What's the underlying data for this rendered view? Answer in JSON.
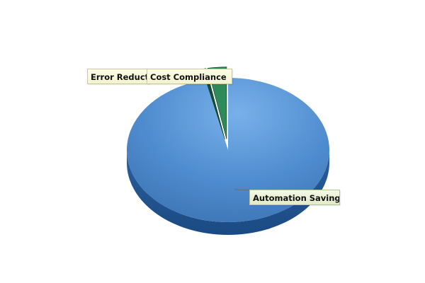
{
  "chart_data": {
    "type": "pie",
    "title": "",
    "style": "3d",
    "slices": [
      {
        "label": "Automation Savings",
        "value": 96.4,
        "color": "#4f8ccf"
      },
      {
        "label": "Error Reduction",
        "value": 0.6,
        "color": "#0e4f34"
      },
      {
        "label": "Cost Compliance",
        "value": 3.0,
        "color": "#2f8a5a"
      }
    ]
  }
}
